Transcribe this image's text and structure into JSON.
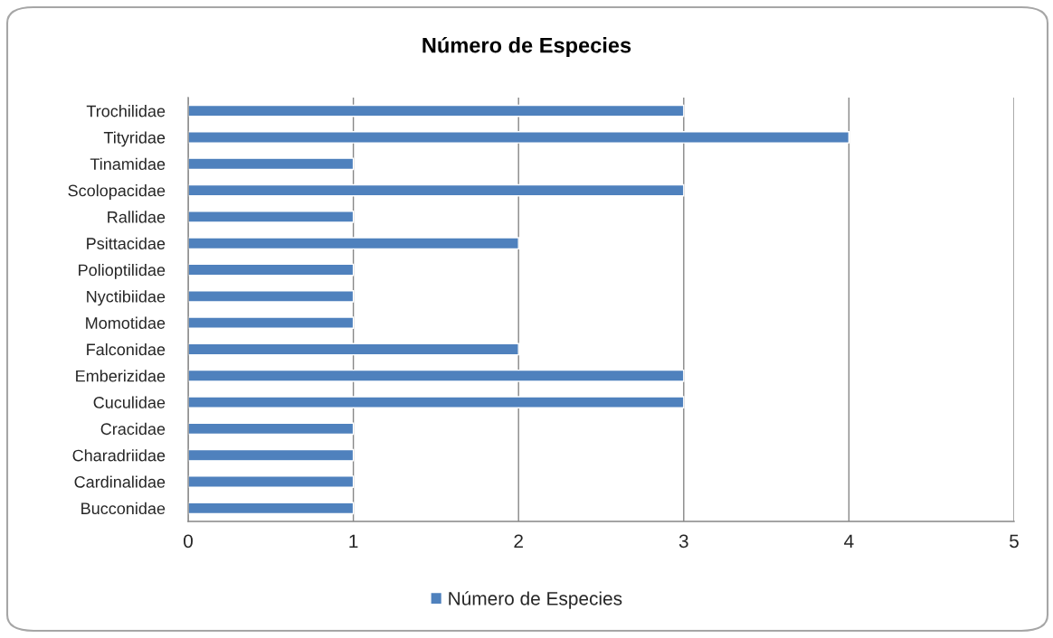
{
  "chart_data": {
    "type": "bar",
    "orientation": "horizontal",
    "title": "Número de Especies",
    "categories": [
      "Trochilidae",
      "Tityridae",
      "Tinamidae",
      "Scolopacidae",
      "Rallidae",
      "Psittacidae",
      "Polioptilidae",
      "Nyctibiidae",
      "Momotidae",
      "Falconidae",
      "Emberizidae",
      "Cuculidae",
      "Cracidae",
      "Charadriidae",
      "Cardinalidae",
      "Bucconidae"
    ],
    "series": [
      {
        "name": "Número de Especies",
        "color": "#4f81bd",
        "values": [
          3,
          4,
          1,
          3,
          1,
          2,
          1,
          1,
          1,
          2,
          3,
          3,
          1,
          1,
          1,
          1
        ]
      }
    ],
    "xlim": [
      0,
      5
    ],
    "xticks": [
      0,
      1,
      2,
      3,
      4,
      5
    ],
    "grid": "x",
    "legend": "bottom"
  }
}
